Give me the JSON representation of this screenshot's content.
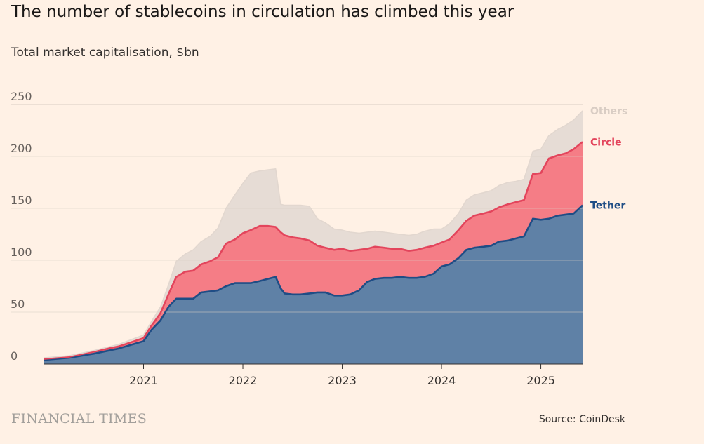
{
  "header": {
    "title": "The number of stablecoins in circulation has climbed this year",
    "subtitle": "Total market capitalisation, $bn"
  },
  "footer": {
    "brand": "FINANCIAL TIMES",
    "source": "Source: CoinDesk"
  },
  "colors": {
    "background": "#fff1e5",
    "tether": "#5f81a6",
    "tether_line": "#1f4d85",
    "circle": "#f57d86",
    "circle_line": "#e3455c",
    "others": "#e6dcd5",
    "others_line": "#e2d7cf",
    "grid": "#d9cdc4"
  },
  "chart_data": {
    "type": "area",
    "stacked": true,
    "title": "The number of stablecoins in circulation has climbed this year",
    "ylabel": "Total market capitalisation, $bn",
    "xlabel": "",
    "ylim": [
      0,
      250
    ],
    "xlim": [
      2020.0,
      2025.42
    ],
    "yticks": [
      0,
      50,
      100,
      150,
      200,
      250
    ],
    "xticks": [
      {
        "value": 2021.0,
        "label": "2021"
      },
      {
        "value": 2022.0,
        "label": "2022"
      },
      {
        "value": 2023.0,
        "label": "2023"
      },
      {
        "value": 2024.0,
        "label": "2024"
      },
      {
        "value": 2025.0,
        "label": "2025"
      }
    ],
    "grid": true,
    "legend": "direct labels at right end of each series",
    "x": [
      2020.0,
      2020.25,
      2020.5,
      2020.75,
      2021.0,
      2021.08,
      2021.17,
      2021.25,
      2021.33,
      2021.42,
      2021.5,
      2021.58,
      2021.67,
      2021.75,
      2021.83,
      2021.92,
      2022.0,
      2022.08,
      2022.17,
      2022.25,
      2022.33,
      2022.38,
      2022.42,
      2022.5,
      2022.58,
      2022.67,
      2022.75,
      2022.83,
      2022.92,
      2023.0,
      2023.08,
      2023.17,
      2023.25,
      2023.33,
      2023.42,
      2023.5,
      2023.58,
      2023.67,
      2023.75,
      2023.83,
      2023.92,
      2024.0,
      2024.08,
      2024.17,
      2024.25,
      2024.33,
      2024.42,
      2024.5,
      2024.58,
      2024.67,
      2024.75,
      2024.83,
      2024.92,
      2025.0,
      2025.08,
      2025.17,
      2025.25,
      2025.33,
      2025.42
    ],
    "series": [
      {
        "name": "Tether",
        "label": "Tether",
        "values": [
          4,
          6,
          10,
          15,
          22,
          33,
          42,
          55,
          63,
          63,
          63,
          69,
          70,
          71,
          75,
          78,
          78,
          78,
          80,
          82,
          84,
          73,
          68,
          67,
          67,
          68,
          69,
          69,
          66,
          66,
          67,
          71,
          79,
          82,
          83,
          83,
          84,
          83,
          83,
          84,
          87,
          94,
          96,
          102,
          110,
          112,
          113,
          114,
          118,
          119,
          121,
          123,
          140,
          139,
          140,
          143,
          144,
          145,
          153
        ]
      },
      {
        "name": "Circle",
        "label": "Circle",
        "values": [
          1,
          1,
          2,
          2,
          3,
          4,
          7,
          12,
          21,
          26,
          27,
          27,
          29,
          32,
          41,
          42,
          48,
          51,
          53,
          51,
          48,
          54,
          56,
          55,
          54,
          51,
          45,
          43,
          44,
          45,
          42,
          39,
          32,
          31,
          29,
          28,
          27,
          26,
          27,
          28,
          27,
          23,
          24,
          27,
          28,
          31,
          32,
          33,
          33,
          35,
          35,
          35,
          43,
          45,
          58,
          58,
          59,
          62,
          61
        ]
      },
      {
        "name": "Others",
        "label": "Others",
        "values": [
          1,
          1,
          1,
          2,
          3,
          4,
          6,
          9,
          15,
          17,
          20,
          22,
          24,
          28,
          34,
          43,
          48,
          55,
          53,
          54,
          56,
          27,
          29,
          31,
          32,
          33,
          26,
          24,
          20,
          18,
          18,
          16,
          16,
          15,
          15,
          15,
          14,
          15,
          15,
          16,
          16,
          13,
          15,
          16,
          20,
          20,
          20,
          20,
          21,
          21,
          20,
          20,
          22,
          23,
          22,
          25,
          27,
          28,
          30
        ]
      }
    ]
  }
}
